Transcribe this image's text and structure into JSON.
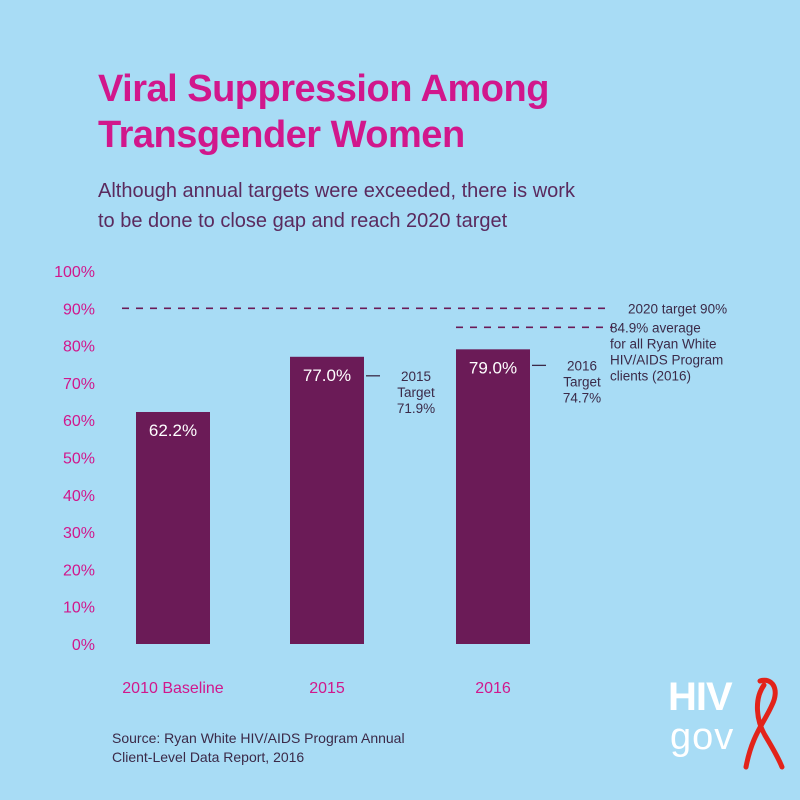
{
  "title_line1": "Viral Suppression Among",
  "title_line2": "Transgender Women",
  "subtitle_line1": "Although annual targets were exceeded, there is work",
  "subtitle_line2": "to be done to close gap and reach 2020 target",
  "source_line1": "Source:  Ryan White HIV/AIDS Program Annual",
  "source_line2": "Client-Level Data Report, 2016",
  "logo": {
    "top": "HIV",
    "bottom": "gov"
  },
  "colors": {
    "background": "#a8dcf5",
    "bar": "#6b1b57",
    "accent": "#d1178c",
    "text": "#3b2a48",
    "ribbon": "#e2231a"
  },
  "chart_data": {
    "type": "bar",
    "categories": [
      "2010 Baseline",
      "2015",
      "2016"
    ],
    "values": [
      62.2,
      77.0,
      79.0
    ],
    "value_labels": [
      "62.2%",
      "77.0%",
      "79.0%"
    ],
    "ylim": [
      0,
      100
    ],
    "yticks": [
      "0%",
      "10%",
      "20%",
      "30%",
      "40%",
      "50%",
      "60%",
      "70%",
      "80%",
      "90%",
      "100%"
    ],
    "grid": false,
    "targets": [
      {
        "category": "2015",
        "value": 71.9,
        "lines": [
          "2015",
          "Target",
          "71.9%"
        ]
      },
      {
        "category": "2016",
        "value": 74.7,
        "lines": [
          "2016",
          "Target",
          "74.7%"
        ]
      }
    ],
    "reference_lines": [
      {
        "value": 90,
        "label_lines": [
          "2020 target 90%"
        ]
      },
      {
        "value": 84.9,
        "label_lines": [
          "84.9% average",
          "for all Ryan White",
          "HIV/AIDS Program",
          "clients (2016)"
        ]
      }
    ]
  }
}
